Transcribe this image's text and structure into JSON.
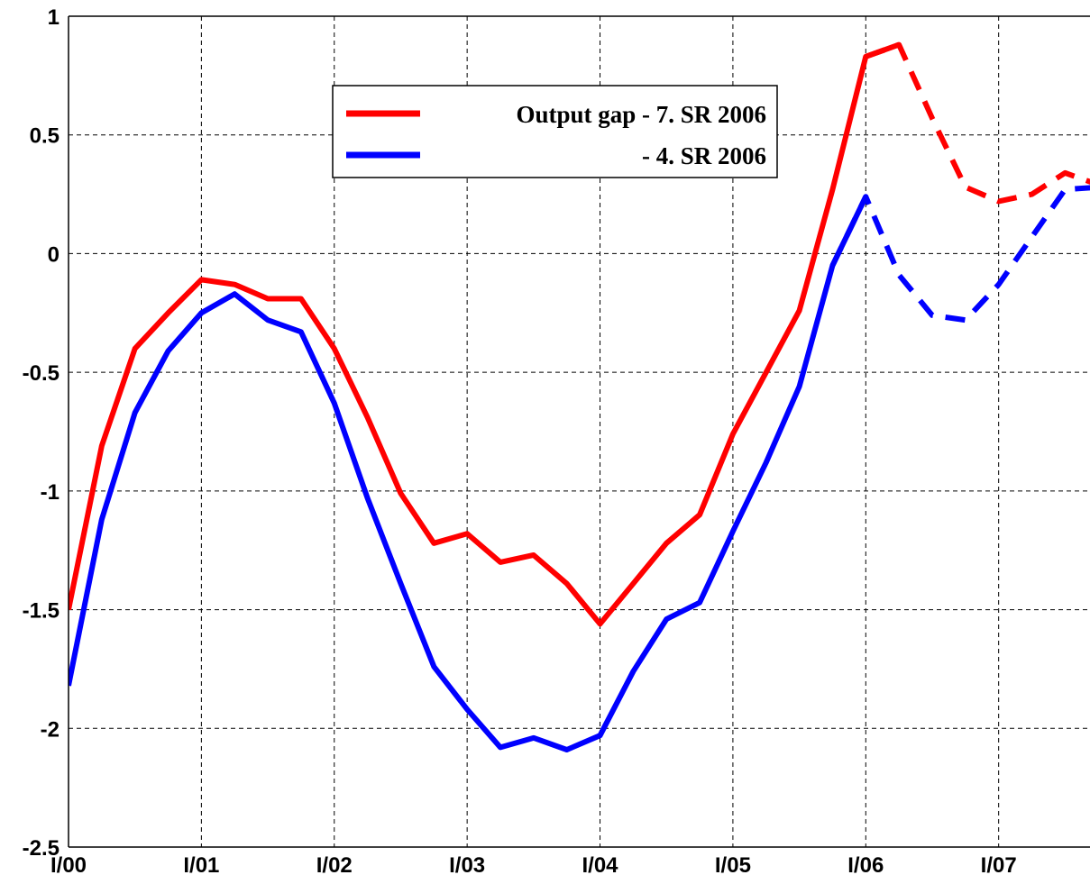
{
  "chart_data": {
    "type": "line",
    "x": [
      0,
      1,
      2,
      3,
      4,
      5,
      6,
      7,
      8,
      9,
      10,
      11,
      12,
      13,
      14,
      15,
      16,
      17,
      18,
      19,
      20,
      21,
      22,
      23,
      24,
      25,
      26,
      27,
      28,
      29,
      30,
      31
    ],
    "series": [
      {
        "name": "Output gap - 7. SR 2006",
        "color": "#ff0000",
        "dash_from": 25,
        "values": [
          -1.5,
          -0.81,
          -0.4,
          -0.25,
          -0.11,
          -0.13,
          -0.19,
          -0.19,
          -0.4,
          -0.69,
          -1.01,
          -1.22,
          -1.18,
          -1.3,
          -1.27,
          -1.39,
          -1.56,
          -1.39,
          -1.22,
          -1.1,
          -0.76,
          -0.5,
          -0.24,
          0.27,
          0.83,
          0.88,
          0.57,
          0.28,
          0.22,
          0.25,
          0.34,
          0.29
        ]
      },
      {
        "name": "- 4. SR 2006",
        "color": "#0000ff",
        "dash_from": 24,
        "values": [
          -1.82,
          -1.12,
          -0.67,
          -0.41,
          -0.25,
          -0.17,
          -0.28,
          -0.33,
          -0.63,
          -1.03,
          -1.39,
          -1.74,
          -1.92,
          -2.08,
          -2.04,
          -2.09,
          -2.03,
          -1.76,
          -1.54,
          -1.47,
          -1.17,
          -0.88,
          -0.56,
          -0.05,
          0.24,
          -0.09,
          -0.26,
          -0.28,
          -0.13,
          0.07,
          0.27,
          0.28
        ]
      }
    ],
    "xlim": [
      0,
      30.75
    ],
    "xticks": [
      {
        "value": 0,
        "label": "I/00"
      },
      {
        "value": 4,
        "label": "I/01"
      },
      {
        "value": 8,
        "label": "I/02"
      },
      {
        "value": 12,
        "label": "I/03"
      },
      {
        "value": 16,
        "label": "I/04"
      },
      {
        "value": 20,
        "label": "I/05"
      },
      {
        "value": 24,
        "label": "I/06"
      },
      {
        "value": 28,
        "label": "I/07"
      }
    ],
    "ylim": [
      -2.5,
      1
    ],
    "yticks": [
      -2.5,
      -2,
      -1.5,
      -1,
      -0.5,
      0,
      0.5,
      1
    ],
    "grid": true
  }
}
